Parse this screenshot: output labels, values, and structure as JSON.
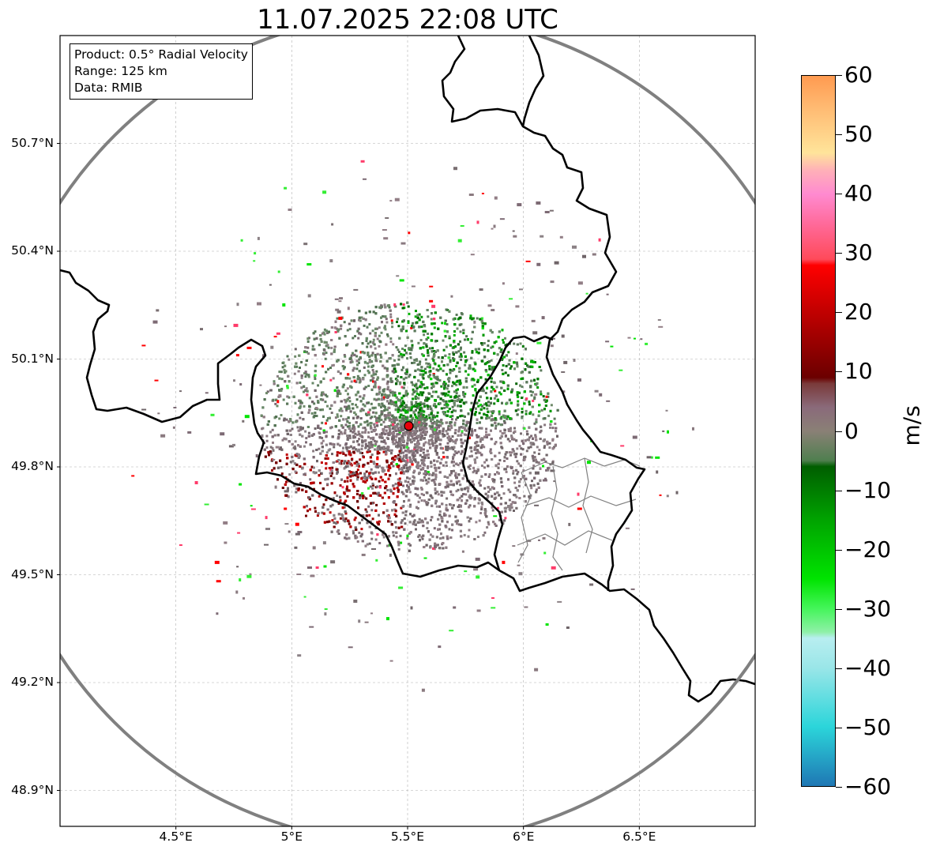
{
  "title": "11.07.2025 22:08 UTC",
  "info": {
    "product": "Product: 0.5° Radial Velocity",
    "range": "Range: 125 km",
    "data": "Data: RMIB"
  },
  "map": {
    "lon_range": [
      4.0,
      7.0
    ],
    "lat_range": [
      48.8,
      51.0
    ],
    "lon_ticks": [
      {
        "value": 4.5,
        "label": "4.5°E"
      },
      {
        "value": 5.0,
        "label": "5°E"
      },
      {
        "value": 5.5,
        "label": "5.5°E"
      },
      {
        "value": 6.0,
        "label": "6°E"
      },
      {
        "value": 6.5,
        "label": "6.5°E"
      }
    ],
    "lat_ticks": [
      {
        "value": 50.7,
        "label": "50.7°N"
      },
      {
        "value": 50.4,
        "label": "50.4°N"
      },
      {
        "value": 50.1,
        "label": "50.1°N"
      },
      {
        "value": 49.8,
        "label": "49.8°N"
      },
      {
        "value": 49.5,
        "label": "49.5°N"
      },
      {
        "value": 49.2,
        "label": "49.2°N"
      },
      {
        "value": 48.9,
        "label": "48.9°N"
      }
    ],
    "radar_site": {
      "lon": 5.505,
      "lat": 49.914
    },
    "range_km": 125,
    "colors": {
      "range_ring": "#808080",
      "border": "#000000",
      "admin": "#808080",
      "grid": "#b0b0b0",
      "site": "#e8000b"
    }
  },
  "colorbar": {
    "unit": "m/s",
    "min": -60,
    "max": 60,
    "ticks": [
      {
        "value": 60,
        "label": "60"
      },
      {
        "value": 50,
        "label": "50"
      },
      {
        "value": 40,
        "label": "40"
      },
      {
        "value": 30,
        "label": "30"
      },
      {
        "value": 20,
        "label": "20"
      },
      {
        "value": 10,
        "label": "10"
      },
      {
        "value": 0,
        "label": "0"
      },
      {
        "value": -10,
        "label": "−10"
      },
      {
        "value": -20,
        "label": "−20"
      },
      {
        "value": -30,
        "label": "−30"
      },
      {
        "value": -40,
        "label": "−40"
      },
      {
        "value": -50,
        "label": "−50"
      },
      {
        "value": -60,
        "label": "−60"
      }
    ],
    "stops": [
      {
        "value": -60,
        "color": "#1f77b4"
      },
      {
        "value": -50,
        "color": "#2bd5da"
      },
      {
        "value": -40,
        "color": "#9ae6e8"
      },
      {
        "value": -35,
        "color": "#b8eef0"
      },
      {
        "value": -34,
        "color": "#8ff0a8"
      },
      {
        "value": -30,
        "color": "#44f55a"
      },
      {
        "value": -25,
        "color": "#00e400"
      },
      {
        "value": -15,
        "color": "#00a300"
      },
      {
        "value": -6,
        "color": "#005e00"
      },
      {
        "value": -5,
        "color": "#4f7f4f"
      },
      {
        "value": 0,
        "color": "#8a8076"
      },
      {
        "value": 4,
        "color": "#8a6a7a"
      },
      {
        "value": 8,
        "color": "#7a3a3a"
      },
      {
        "value": 9,
        "color": "#6b0000"
      },
      {
        "value": 20,
        "color": "#c00000"
      },
      {
        "value": 28,
        "color": "#ff0000"
      },
      {
        "value": 29,
        "color": "#ff4a5a"
      },
      {
        "value": 35,
        "color": "#ff6a9a"
      },
      {
        "value": 40,
        "color": "#ff8ad0"
      },
      {
        "value": 44,
        "color": "#ffb0b8"
      },
      {
        "value": 47,
        "color": "#ffe49a"
      },
      {
        "value": 55,
        "color": "#ffb870"
      },
      {
        "value": 60,
        "color": "#ff9a50"
      }
    ]
  }
}
